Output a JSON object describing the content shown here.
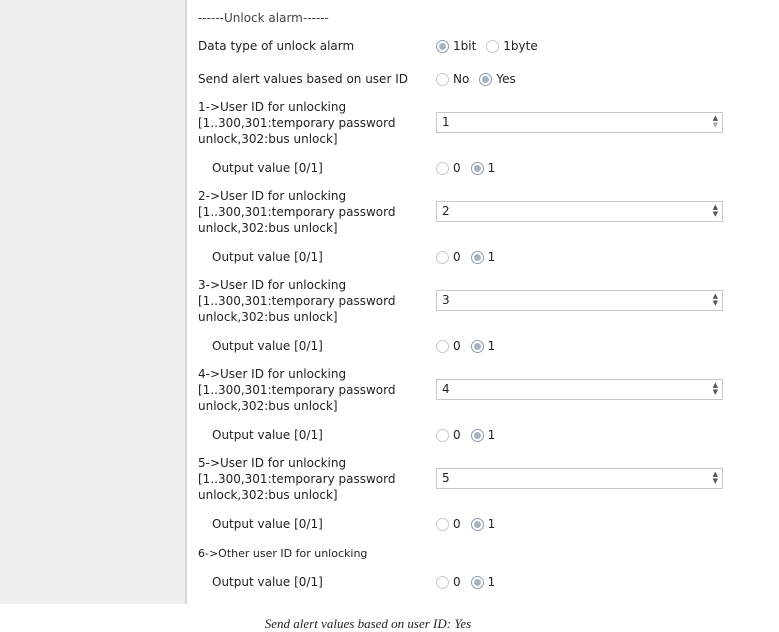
{
  "section_title": "------Unlock alarm------",
  "data_type": {
    "label": "Data type of unlock alarm",
    "options": [
      "1bit",
      "1byte"
    ],
    "selected": "1bit"
  },
  "send_alert": {
    "label": "Send alert values based on user ID",
    "options": [
      "No",
      "Yes"
    ],
    "selected": "Yes"
  },
  "users": [
    {
      "lines": [
        "1->User ID for unlocking",
        "[1..300,301:temporary password",
        "unlock,302:bus unlock]"
      ],
      "value": "1",
      "output_label": "Output value [0/1]",
      "output_options": [
        "0",
        "1"
      ],
      "output_selected": "1"
    },
    {
      "lines": [
        "2->User ID for unlocking",
        "[1..300,301:temporary password",
        "unlock,302:bus unlock]"
      ],
      "value": "2",
      "output_label": "Output value [0/1]",
      "output_options": [
        "0",
        "1"
      ],
      "output_selected": "1"
    },
    {
      "lines": [
        "3->User ID for unlocking",
        "[1..300,301:temporary password",
        "unlock,302:bus unlock]"
      ],
      "value": "3",
      "output_label": "Output value [0/1]",
      "output_options": [
        "0",
        "1"
      ],
      "output_selected": "1"
    },
    {
      "lines": [
        "4->User ID for unlocking",
        "[1..300,301:temporary password",
        "unlock,302:bus unlock]"
      ],
      "value": "4",
      "output_label": "Output value [0/1]",
      "output_options": [
        "0",
        "1"
      ],
      "output_selected": "1"
    },
    {
      "lines": [
        "5->User ID for unlocking",
        "[1..300,301:temporary password",
        "unlock,302:bus unlock]"
      ],
      "value": "5",
      "output_label": "Output value [0/1]",
      "output_options": [
        "0",
        "1"
      ],
      "output_selected": "1"
    }
  ],
  "other": {
    "label": "6->Other user ID for unlocking",
    "output_label": "Output value [0/1]",
    "output_options": [
      "0",
      "1"
    ],
    "output_selected": "1"
  },
  "caption": "Send alert values based on user ID: Yes"
}
